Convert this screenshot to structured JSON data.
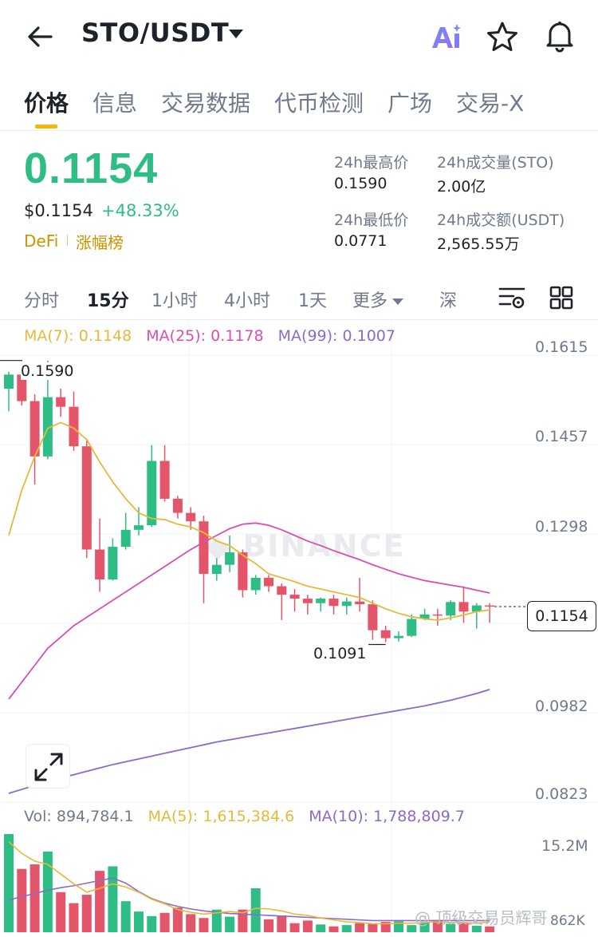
{
  "header": {
    "title": "STO/USDT"
  },
  "tabs": [
    "价格",
    "信息",
    "交易数据",
    "代币检测",
    "广场",
    "交易-X"
  ],
  "price": {
    "last": "0.1154",
    "usd": "$0.1154",
    "change": "+48.33%",
    "tag_category": "DeFi",
    "tag_rank": "涨幅榜"
  },
  "stats": {
    "high_label": "24h最高价",
    "high_value": "0.1590",
    "low_label": "24h最低价",
    "low_value": "0.0771",
    "vol_base_label": "24h成交量(STO)",
    "vol_base_value": "2.00亿",
    "vol_quote_label": "24h成交额(USDT)",
    "vol_quote_value": "2,565.55万"
  },
  "intervals": {
    "items": [
      "分时",
      "15分",
      "1小时",
      "4小时",
      "1天",
      "更多",
      "深"
    ],
    "active": "15分"
  },
  "ma_legend": {
    "ma7": "MA(7): 0.1148",
    "ma25": "MA(25): 0.1178",
    "ma99": "MA(99): 0.1007"
  },
  "vol_legend": {
    "vol": "Vol: 894,784.1",
    "ma5": "MA(5): 1,615,384.6",
    "ma10": "MA(10): 1,788,809.7"
  },
  "watermark": {
    "brand": "BINANCE",
    "corner": "@ 顶级交易员辉哥"
  },
  "colors": {
    "up": "#2ebd85",
    "down": "#e55569",
    "ma7": "#e6b93a",
    "ma25": "#d94fb0",
    "ma99": "#8b6bc7",
    "accent": "#f0b90b"
  },
  "chart_data": {
    "type": "candlestick",
    "y_axis_labels": [
      "0.1615",
      "0.1457",
      "0.1298",
      "0.1154",
      "0.0982",
      "0.0823"
    ],
    "ylim": [
      0.0823,
      0.1615
    ],
    "high_marker": "0.1590",
    "low_marker": "0.1091",
    "last_price": "0.1154",
    "vol_axis_label": "15.2M",
    "vol_axis_bottom": "862K",
    "candles": [
      {
        "o": 0.154,
        "h": 0.157,
        "l": 0.15,
        "c": 0.1565
      },
      {
        "o": 0.1565,
        "h": 0.1575,
        "l": 0.151,
        "c": 0.1518
      },
      {
        "o": 0.1518,
        "h": 0.153,
        "l": 0.137,
        "c": 0.142
      },
      {
        "o": 0.142,
        "h": 0.159,
        "l": 0.1415,
        "c": 0.1525
      },
      {
        "o": 0.1525,
        "h": 0.154,
        "l": 0.149,
        "c": 0.1508
      },
      {
        "o": 0.1508,
        "h": 0.1535,
        "l": 0.143,
        "c": 0.1438
      },
      {
        "o": 0.1438,
        "h": 0.145,
        "l": 0.124,
        "c": 0.1255
      },
      {
        "o": 0.1255,
        "h": 0.131,
        "l": 0.118,
        "c": 0.1202
      },
      {
        "o": 0.1202,
        "h": 0.1275,
        "l": 0.12,
        "c": 0.126
      },
      {
        "o": 0.126,
        "h": 0.132,
        "l": 0.1255,
        "c": 0.129
      },
      {
        "o": 0.129,
        "h": 0.133,
        "l": 0.128,
        "c": 0.1298
      },
      {
        "o": 0.1298,
        "h": 0.144,
        "l": 0.1295,
        "c": 0.1412
      },
      {
        "o": 0.1412,
        "h": 0.144,
        "l": 0.134,
        "c": 0.1345
      },
      {
        "o": 0.1345,
        "h": 0.135,
        "l": 0.131,
        "c": 0.132
      },
      {
        "o": 0.132,
        "h": 0.133,
        "l": 0.129,
        "c": 0.1305
      },
      {
        "o": 0.1305,
        "h": 0.1315,
        "l": 0.116,
        "c": 0.1212
      },
      {
        "o": 0.1212,
        "h": 0.124,
        "l": 0.12,
        "c": 0.1228
      },
      {
        "o": 0.1228,
        "h": 0.128,
        "l": 0.1215,
        "c": 0.125
      },
      {
        "o": 0.125,
        "h": 0.1255,
        "l": 0.117,
        "c": 0.1183
      },
      {
        "o": 0.1183,
        "h": 0.121,
        "l": 0.1175,
        "c": 0.1205
      },
      {
        "o": 0.1205,
        "h": 0.121,
        "l": 0.118,
        "c": 0.119
      },
      {
        "o": 0.119,
        "h": 0.1195,
        "l": 0.113,
        "c": 0.1175
      },
      {
        "o": 0.1175,
        "h": 0.1185,
        "l": 0.1145,
        "c": 0.1168
      },
      {
        "o": 0.1168,
        "h": 0.1175,
        "l": 0.114,
        "c": 0.116
      },
      {
        "o": 0.116,
        "h": 0.117,
        "l": 0.1145,
        "c": 0.1168
      },
      {
        "o": 0.1168,
        "h": 0.1175,
        "l": 0.114,
        "c": 0.1155
      },
      {
        "o": 0.1155,
        "h": 0.117,
        "l": 0.114,
        "c": 0.1163
      },
      {
        "o": 0.1163,
        "h": 0.1205,
        "l": 0.1145,
        "c": 0.1158
      },
      {
        "o": 0.1158,
        "h": 0.1165,
        "l": 0.1095,
        "c": 0.1112
      },
      {
        "o": 0.1112,
        "h": 0.112,
        "l": 0.1091,
        "c": 0.1098
      },
      {
        "o": 0.1098,
        "h": 0.111,
        "l": 0.1092,
        "c": 0.1102
      },
      {
        "o": 0.1102,
        "h": 0.114,
        "l": 0.11,
        "c": 0.1132
      },
      {
        "o": 0.1132,
        "h": 0.115,
        "l": 0.113,
        "c": 0.114
      },
      {
        "o": 0.114,
        "h": 0.115,
        "l": 0.112,
        "c": 0.1138
      },
      {
        "o": 0.1138,
        "h": 0.1165,
        "l": 0.113,
        "c": 0.1162
      },
      {
        "o": 0.1162,
        "h": 0.119,
        "l": 0.1125,
        "c": 0.1145
      },
      {
        "o": 0.1145,
        "h": 0.116,
        "l": 0.1115,
        "c": 0.1156
      },
      {
        "o": 0.1156,
        "h": 0.116,
        "l": 0.1125,
        "c": 0.1154
      }
    ],
    "ma7": [
      0.128,
      0.136,
      0.142,
      0.147,
      0.148,
      0.147,
      0.145,
      0.141,
      0.1375,
      0.1345,
      0.132,
      0.131,
      0.1308,
      0.13,
      0.1295,
      0.1285,
      0.127,
      0.1262,
      0.1245,
      0.123,
      0.1212,
      0.1205,
      0.1198,
      0.119,
      0.1185,
      0.118,
      0.1175,
      0.117,
      0.116,
      0.115,
      0.1142,
      0.1136,
      0.1132,
      0.113,
      0.1134,
      0.1139,
      0.1145,
      0.1148
    ],
    "ma25": [
      0.099,
      0.102,
      0.105,
      0.108,
      0.11,
      0.112,
      0.1135,
      0.115,
      0.1165,
      0.118,
      0.1195,
      0.121,
      0.1225,
      0.124,
      0.1255,
      0.1268,
      0.128,
      0.1292,
      0.13,
      0.1302,
      0.1298,
      0.129,
      0.128,
      0.127,
      0.1262,
      0.1253,
      0.1245,
      0.1237,
      0.1228,
      0.122,
      0.1212,
      0.1206,
      0.12,
      0.1196,
      0.1192,
      0.1188,
      0.1183,
      0.1178
    ],
    "ma99": [
      0.0823,
      0.083,
      0.0837,
      0.0844,
      0.085,
      0.0856,
      0.0862,
      0.0868,
      0.0874,
      0.0879,
      0.0884,
      0.0889,
      0.0894,
      0.0899,
      0.0904,
      0.0909,
      0.0914,
      0.0918,
      0.0922,
      0.0926,
      0.093,
      0.0934,
      0.0938,
      0.0942,
      0.0946,
      0.095,
      0.0954,
      0.0958,
      0.0962,
      0.0966,
      0.097,
      0.0974,
      0.0978,
      0.0983,
      0.0988,
      0.0994,
      0.1,
      0.1007
    ],
    "volumes": [
      15.2,
      9.8,
      10.5,
      12.5,
      6.2,
      4.5,
      5.8,
      9.5,
      10.2,
      4.8,
      3.2,
      2.5,
      3.0,
      3.8,
      2.8,
      2.2,
      3.5,
      2.4,
      3.5,
      6.8,
      2.0,
      2.6,
      1.4,
      1.8,
      1.2,
      0.9,
      1.1,
      1.4,
      1.3,
      1.6,
      1.7,
      1.1,
      1.5,
      1.9,
      1.3,
      1.4,
      1.0,
      0.9
    ],
    "vol_ma5": [
      14.0,
      12.2,
      11.0,
      10.5,
      9.0,
      7.5,
      6.2,
      6.8,
      7.5,
      7.0,
      6.2,
      5.1,
      4.4,
      3.5,
      3.1,
      2.8,
      3.0,
      3.2,
      3.0,
      3.7,
      3.6,
      3.3,
      2.8,
      2.6,
      2.2,
      1.9,
      1.6,
      1.5,
      1.3,
      1.3,
      1.4,
      1.4,
      1.5,
      1.6,
      1.5,
      1.5,
      1.4,
      1.6
    ],
    "vol_ma10": [
      5.0,
      5.5,
      6.0,
      6.5,
      6.9,
      7.2,
      7.6,
      8.0,
      8.4,
      7.6,
      6.3,
      5.2,
      4.5,
      4.0,
      3.6,
      3.3,
      3.1,
      2.9,
      2.8,
      2.7,
      2.6,
      2.5,
      2.4,
      2.3,
      2.2,
      2.1,
      2.0,
      1.9,
      1.8,
      1.8,
      1.8,
      1.8,
      1.8,
      1.8,
      1.8,
      1.8,
      1.8,
      1.8
    ]
  }
}
